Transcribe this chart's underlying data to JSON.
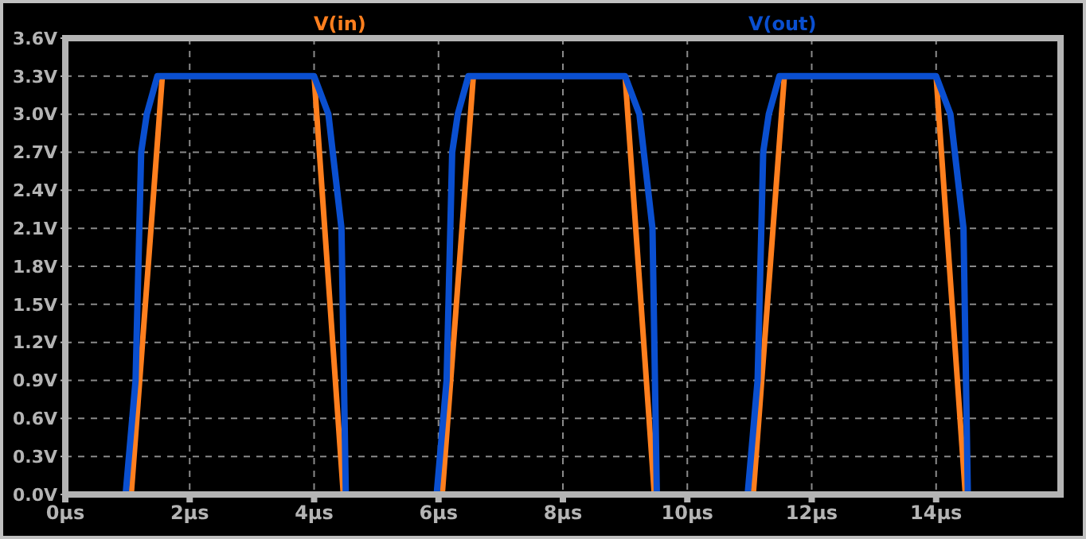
{
  "chart_data": {
    "type": "line",
    "legend": "top",
    "grid": true,
    "line_style": "solid",
    "marker": "none",
    "xlim": [
      0,
      16
    ],
    "ylim": [
      0,
      3.6
    ],
    "xticks": [
      {
        "value": 0,
        "label": "0µs"
      },
      {
        "value": 2,
        "label": "2µs"
      },
      {
        "value": 4,
        "label": "4µs"
      },
      {
        "value": 6,
        "label": "6µs"
      },
      {
        "value": 8,
        "label": "8µs"
      },
      {
        "value": 10,
        "label": "10µs"
      },
      {
        "value": 12,
        "label": "12µs"
      },
      {
        "value": 14,
        "label": "14µs"
      }
    ],
    "yticks": [
      {
        "value": 0,
        "label": "0.0V"
      },
      {
        "value": 0.3,
        "label": "0.3V"
      },
      {
        "value": 0.6,
        "label": "0.6V"
      },
      {
        "value": 0.9,
        "label": "0.9V"
      },
      {
        "value": 1.2,
        "label": "1.2V"
      },
      {
        "value": 1.5,
        "label": "1.5V"
      },
      {
        "value": 1.8,
        "label": "1.8V"
      },
      {
        "value": 2.1,
        "label": "2.1V"
      },
      {
        "value": 2.4,
        "label": "2.4V"
      },
      {
        "value": 2.7,
        "label": "2.7V"
      },
      {
        "value": 3.0,
        "label": "3.0V"
      },
      {
        "value": 3.3,
        "label": "3.3V"
      },
      {
        "value": 3.6,
        "label": "3.6V"
      }
    ],
    "series": [
      {
        "name": "V(in)",
        "color": "#ff7f1e",
        "x": [
          0,
          1.06,
          1.56,
          4.0,
          4.47,
          6.06,
          6.56,
          9.0,
          9.47,
          11.06,
          11.56,
          14.0,
          14.47,
          16
        ],
        "values": [
          0,
          0,
          3.3,
          3.3,
          0,
          0,
          3.3,
          3.3,
          0,
          0,
          3.3,
          3.3,
          0,
          0
        ]
      },
      {
        "name": "V(out)",
        "color": "#0a4fd0",
        "x": [
          0,
          0.97,
          1.13,
          1.22,
          1.31,
          1.48,
          4.0,
          4.23,
          4.44,
          4.51,
          5.97,
          6.13,
          6.22,
          6.31,
          6.48,
          9.0,
          9.23,
          9.44,
          9.51,
          10.97,
          11.13,
          11.22,
          11.31,
          11.48,
          14.0,
          14.23,
          14.44,
          14.51,
          16
        ],
        "values": [
          0,
          0,
          0.9,
          2.7,
          3.0,
          3.3,
          3.3,
          3.0,
          2.1,
          0,
          0,
          0.9,
          2.7,
          3.0,
          3.3,
          3.3,
          3.0,
          2.1,
          0,
          0,
          0.9,
          2.7,
          3.0,
          3.3,
          3.3,
          3.0,
          2.1,
          0,
          0
        ]
      }
    ]
  }
}
